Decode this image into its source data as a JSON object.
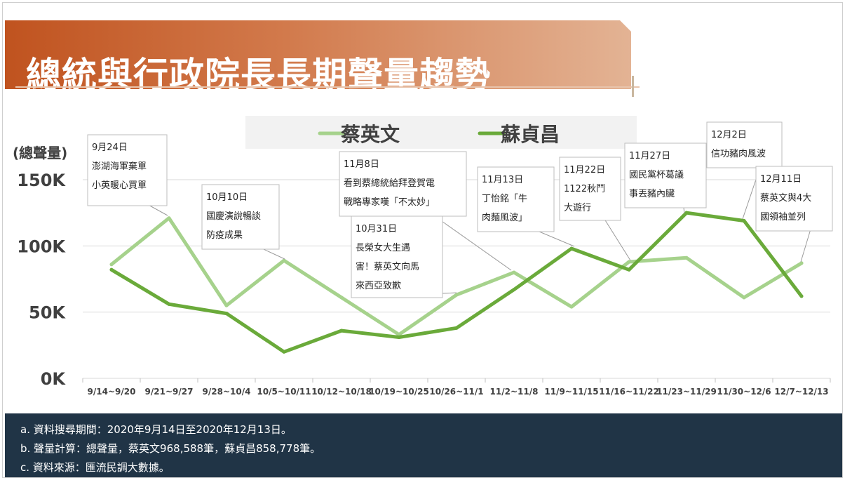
{
  "title": "總統與行政院長長期聲量趨勢",
  "chart_data": {
    "type": "line",
    "ylabel": "(總聲量)",
    "ylim": [
      0,
      150000
    ],
    "yticks": [
      {
        "value": 0,
        "label": "0K"
      },
      {
        "value": 50000,
        "label": "50K"
      },
      {
        "value": 100000,
        "label": "100K"
      },
      {
        "value": 150000,
        "label": "150K"
      }
    ],
    "grid": true,
    "legend_position": "top",
    "categories": [
      "9/14~9/20",
      "9/21~9/27",
      "9/28~10/4",
      "10/5~10/11",
      "10/12~10/18",
      "10/19~10/25",
      "10/26~11/1",
      "11/2~11/8",
      "11/9~11/15",
      "11/16~11/22",
      "11/23~11/29",
      "11/30~12/6",
      "12/7~12/13"
    ],
    "series": [
      {
        "name": "蔡英文",
        "color": "#a6d28c",
        "values": [
          86000,
          121000,
          55000,
          89000,
          61000,
          33000,
          63000,
          80000,
          54000,
          88000,
          91000,
          61000,
          87000
        ]
      },
      {
        "name": "蘇貞昌",
        "color": "#6aaa3a",
        "values": [
          82000,
          56000,
          49000,
          20000,
          36000,
          31000,
          38000,
          67000,
          98000,
          82000,
          125000,
          119000,
          62000
        ]
      }
    ],
    "annotations": [
      {
        "lines": [
          "9月24日",
          "澎湖海軍棄單",
          "小英暖心買單"
        ],
        "category_index": 1,
        "series": "蔡英文"
      },
      {
        "lines": [
          "10月10日",
          "國慶演說暢談",
          "防疫成果"
        ],
        "category_index": 3,
        "series": "蔡英文"
      },
      {
        "lines": [
          "11月8日",
          "看到蔡總統給拜登賀電",
          "戰略專家嘆「不太妙」"
        ],
        "category_index": 7,
        "series": "蔡英文"
      },
      {
        "lines": [
          "10月31日",
          "長榮女大生遇",
          "害！蔡英文向馬",
          "來西亞致歉"
        ],
        "category_index": 6,
        "series": "蔡英文"
      },
      {
        "lines": [
          "11月13日",
          "丁怡銘「牛",
          "肉麵風波」"
        ],
        "category_index": 8,
        "series": "蘇貞昌"
      },
      {
        "lines": [
          "11月22日",
          "1122秋鬥",
          "大遊行"
        ],
        "category_index": 9,
        "series": "蔡英文"
      },
      {
        "lines": [
          "11月27日",
          "國民黨杯葛議",
          "事丟豬內臟"
        ],
        "category_index": 10,
        "series": "蘇貞昌"
      },
      {
        "lines": [
          "12月2日",
          "信功豬肉風波"
        ],
        "category_index": 11,
        "series": "蘇貞昌"
      },
      {
        "lines": [
          "12月11日",
          "蔡英文與4大",
          "國領袖並列"
        ],
        "category_index": 12,
        "series": "蔡英文"
      }
    ]
  },
  "footer": {
    "notes": [
      "a. 資料搜尋期間：2020年9月14日至2020年12月13日。",
      "b. 聲量計算：總聲量，蔡英文968,588筆，蘇貞昌858,778筆。",
      "c. 資料來源：匯流民調大數據。"
    ]
  }
}
